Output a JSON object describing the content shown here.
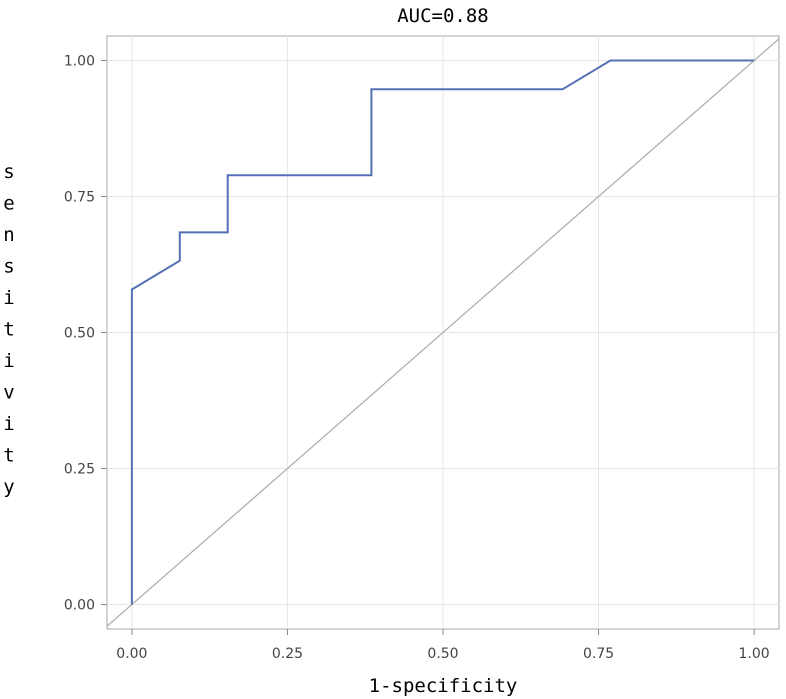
{
  "chart_data": {
    "type": "line",
    "title": "AUC=0.88",
    "xlabel": "1-specificity",
    "ylabel": "sensitivity",
    "xlim": [
      -0.04,
      1.04
    ],
    "ylim": [
      -0.045,
      1.045
    ],
    "x_ticks": [
      0.0,
      0.25,
      0.5,
      0.75,
      1.0
    ],
    "x_tick_labels": [
      "0.00",
      "0.25",
      "0.50",
      "0.75",
      "1.00"
    ],
    "y_ticks": [
      0.0,
      0.25,
      0.5,
      0.75,
      1.0
    ],
    "y_tick_labels": [
      "0.00",
      "0.25",
      "0.50",
      "0.75",
      "1.00"
    ],
    "grid": true,
    "series": [
      {
        "color": "#5470b4",
        "x": [
          0.0,
          0.0,
          0.077,
          0.077,
          0.154,
          0.154,
          0.385,
          0.385,
          0.692,
          0.769,
          0.769,
          1.0
        ],
        "y": [
          0.0,
          0.579,
          0.632,
          0.684,
          0.684,
          0.789,
          0.789,
          0.947,
          0.947,
          1.0,
          1.0,
          1.0
        ]
      }
    ],
    "reference_line": {
      "color": "#b0b0b0",
      "x": [
        0.0,
        1.0
      ],
      "y": [
        0.0,
        1.0
      ]
    }
  }
}
